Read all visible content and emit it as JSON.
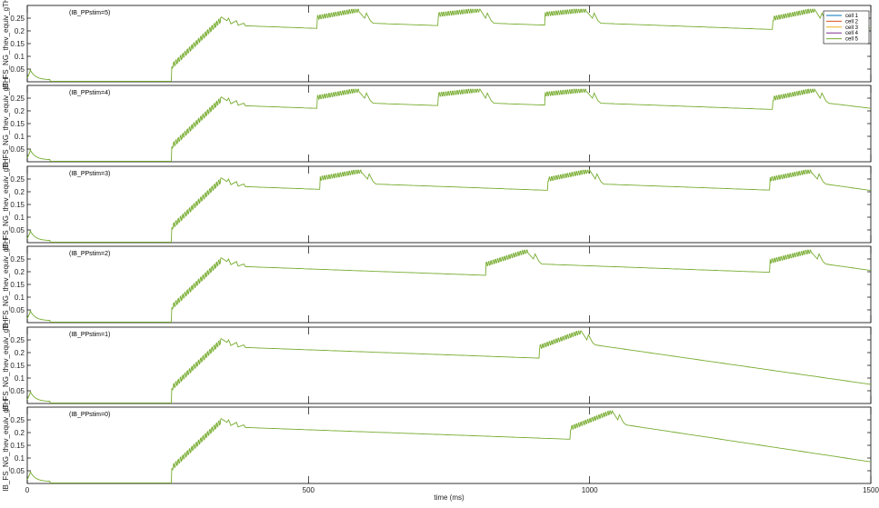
{
  "chart_data": {
    "type": "line",
    "xlabel": "time (ms)",
    "xlim": [
      0,
      1500
    ],
    "xticks": [
      0,
      500,
      1000,
      1500
    ],
    "yticks": [
      0.05,
      0.1,
      0.15,
      0.2,
      0.25
    ],
    "ylim": [
      0,
      0.3
    ],
    "legend": {
      "placement": "top-right",
      "entries": [
        {
          "name": "cell 1",
          "color": "#0072BD"
        },
        {
          "name": "cell 2",
          "color": "#D95319"
        },
        {
          "name": "cell 3",
          "color": "#EDB120"
        },
        {
          "name": "cell 4",
          "color": "#7E2F8E"
        },
        {
          "name": "cell 5",
          "color": "#77AC30"
        }
      ]
    },
    "line_color": "#77AC30",
    "panels": [
      {
        "title": "(IB_PPstim=5)",
        "ylabel": "IB_FS_NG_thev_equiv_gTH",
        "tail_end": 0.21,
        "burst_starts": [
          515,
          730,
          920,
          1325
        ]
      },
      {
        "title": "(IB_PPstim=4)",
        "ylabel": "IB_FS_NG_thev_equiv_gTH",
        "tail_end": 0.21,
        "burst_starts": [
          515,
          730,
          920,
          1325
        ]
      },
      {
        "title": "(IB_PPstim=3)",
        "ylabel": "IB_FS_NG_thev_equiv_gTH",
        "tail_end": 0.205,
        "burst_starts": [
          520,
          925,
          1320
        ]
      },
      {
        "title": "(IB_PPstim=2)",
        "ylabel": "IB_FS_NG_thev_equiv_gTH",
        "tail_end": 0.205,
        "burst_starts": [
          815,
          1320
        ]
      },
      {
        "title": "(IB_PPstim=1)",
        "ylabel": "IB_FS_NG_thev_equiv_gTH",
        "tail_end": 0.075,
        "burst_starts": [
          910
        ]
      },
      {
        "title": "(IB_PPstim=0)",
        "ylabel": "IB_FS_NG_thev_equiv_gTH",
        "tail_end": 0.085,
        "burst_starts": [
          965
        ]
      }
    ]
  }
}
